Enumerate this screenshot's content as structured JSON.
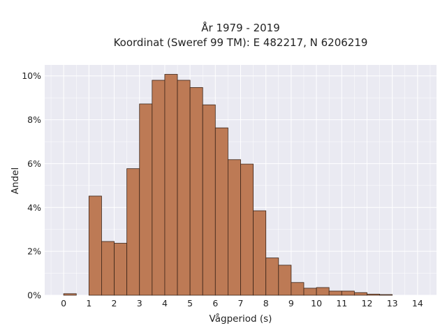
{
  "chart_data": {
    "type": "bar",
    "title_lines": [
      "År 1979 - 2019",
      "Koordinat (Sweref 99 TM): E 482217, N 6206219"
    ],
    "xlabel": "Vågperiod (s)",
    "ylabel": "Andel",
    "xlim": [
      -0.75,
      14.75
    ],
    "ylim": [
      0,
      10.5
    ],
    "x_ticks": [
      "0",
      "1",
      "2",
      "3",
      "4",
      "5",
      "6",
      "7",
      "8",
      "9",
      "10",
      "11",
      "12",
      "13",
      "14"
    ],
    "y_ticks": [
      "0%",
      "2%",
      "4%",
      "6%",
      "8%",
      "10%"
    ],
    "bin_width": 0.5,
    "bins": [
      {
        "start": 0.0,
        "end": 0.5,
        "value": 0.07
      },
      {
        "start": 1.0,
        "end": 1.5,
        "value": 4.52
      },
      {
        "start": 1.5,
        "end": 2.0,
        "value": 2.45
      },
      {
        "start": 2.0,
        "end": 2.5,
        "value": 2.37
      },
      {
        "start": 2.5,
        "end": 3.0,
        "value": 5.77
      },
      {
        "start": 3.0,
        "end": 3.5,
        "value": 8.72
      },
      {
        "start": 3.5,
        "end": 4.0,
        "value": 9.8
      },
      {
        "start": 4.0,
        "end": 4.5,
        "value": 10.07
      },
      {
        "start": 4.5,
        "end": 5.0,
        "value": 9.8
      },
      {
        "start": 5.0,
        "end": 5.5,
        "value": 9.47
      },
      {
        "start": 5.5,
        "end": 6.0,
        "value": 8.68
      },
      {
        "start": 6.0,
        "end": 6.5,
        "value": 7.63
      },
      {
        "start": 6.5,
        "end": 7.0,
        "value": 6.18
      },
      {
        "start": 7.0,
        "end": 7.5,
        "value": 5.98
      },
      {
        "start": 7.5,
        "end": 8.0,
        "value": 3.85
      },
      {
        "start": 8.0,
        "end": 8.5,
        "value": 1.7
      },
      {
        "start": 8.5,
        "end": 9.0,
        "value": 1.37
      },
      {
        "start": 9.0,
        "end": 9.5,
        "value": 0.58
      },
      {
        "start": 9.5,
        "end": 10.0,
        "value": 0.32
      },
      {
        "start": 10.0,
        "end": 10.5,
        "value": 0.35
      },
      {
        "start": 10.5,
        "end": 11.0,
        "value": 0.19
      },
      {
        "start": 11.0,
        "end": 11.5,
        "value": 0.19
      },
      {
        "start": 11.5,
        "end": 12.0,
        "value": 0.12
      },
      {
        "start": 12.0,
        "end": 12.5,
        "value": 0.05
      },
      {
        "start": 12.5,
        "end": 13.0,
        "value": 0.03
      }
    ],
    "grid": true,
    "colors": {
      "bar_fill": "#bd7a55",
      "bar_stroke": "#3a2418",
      "plot_background": "#eaeaf2",
      "grid": "#ffffff"
    }
  }
}
